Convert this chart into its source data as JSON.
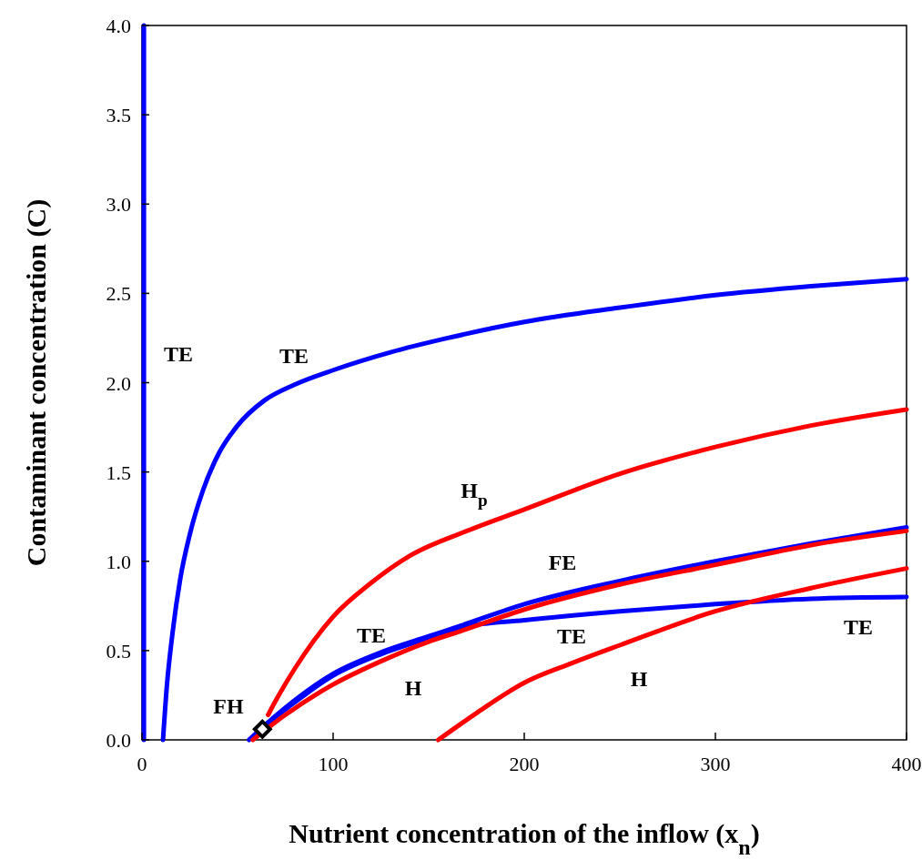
{
  "chart_data": {
    "type": "line",
    "xlabel": "Nutrient concentration of the inflow (x$_{n}$)",
    "ylabel": "Contaminant concentration (C)",
    "xlim": [
      0,
      400
    ],
    "xticks": [
      0,
      100,
      200,
      300,
      400
    ],
    "ylim": [
      0,
      4
    ],
    "yticks": [
      {
        "value": 0,
        "label": "0.0"
      },
      {
        "value": 0.5,
        "label": "0.5"
      },
      {
        "value": 1,
        "label": "1.0"
      },
      {
        "value": 1.5,
        "label": "1.5"
      },
      {
        "value": 2,
        "label": "2.0"
      },
      {
        "value": 2.5,
        "label": "2.5"
      },
      {
        "value": 3,
        "label": "3.0"
      },
      {
        "value": 3.5,
        "label": "3.5"
      },
      {
        "value": 4,
        "label": "4.0"
      }
    ],
    "grid": false,
    "line_style": "solid",
    "ref_lines": [
      {
        "axis": "x",
        "value": 1,
        "color": "#0000ff"
      }
    ],
    "series": [
      {
        "color": "#0000ff",
        "x": [
          11,
          13,
          16,
          20,
          25,
          32,
          40,
          50,
          64,
          80,
          100,
          130,
          160,
          200,
          250,
          300,
          350,
          400
        ],
        "values": [
          0,
          0.3,
          0.6,
          0.9,
          1.15,
          1.4,
          1.6,
          1.76,
          1.9,
          1.99,
          2.07,
          2.17,
          2.25,
          2.34,
          2.42,
          2.49,
          2.54,
          2.58
        ]
      },
      {
        "color": "#ff0000",
        "x": [
          66,
          70,
          80,
          100,
          120,
          140,
          170,
          200,
          250,
          300,
          350,
          400
        ],
        "values": [
          0.14,
          0.22,
          0.4,
          0.69,
          0.88,
          1.03,
          1.17,
          1.29,
          1.49,
          1.64,
          1.76,
          1.85
        ]
      },
      {
        "color": "#0000ff",
        "x": [
          63,
          75,
          100,
          125,
          150,
          167,
          200,
          250,
          300,
          350,
          400
        ],
        "values": [
          0.07,
          0.17,
          0.36,
          0.48,
          0.57,
          0.63,
          0.67,
          0.72,
          0.76,
          0.79,
          0.8
        ]
      },
      {
        "color": "#0000ff",
        "x": [
          56,
          63,
          75,
          100,
          125,
          150,
          167,
          200,
          250,
          300,
          350,
          400
        ],
        "values": [
          0,
          0.07,
          0.18,
          0.37,
          0.49,
          0.58,
          0.64,
          0.76,
          0.89,
          1.0,
          1.1,
          1.19
        ]
      },
      {
        "color": "#ff0000",
        "x": [
          58,
          75,
          100,
          125,
          150,
          167,
          200,
          250,
          300,
          350,
          400
        ],
        "values": [
          0,
          0.14,
          0.31,
          0.44,
          0.55,
          0.61,
          0.73,
          0.87,
          0.98,
          1.09,
          1.17
        ]
      },
      {
        "color": "#ff0000",
        "x": [
          155,
          175,
          200,
          225,
          250,
          300,
          350,
          400
        ],
        "values": [
          0,
          0.15,
          0.32,
          0.43,
          0.53,
          0.72,
          0.85,
          0.96
        ]
      },
      {
        "type": "scatter",
        "color": "#000000",
        "marker": "diamond",
        "x": [
          63
        ],
        "values": [
          0.06
        ]
      }
    ],
    "annotations": [
      "TE",
      "TE",
      "H$_{p}$",
      "FE",
      "TE",
      "TE",
      "TE",
      "H",
      "H",
      "FH"
    ]
  }
}
